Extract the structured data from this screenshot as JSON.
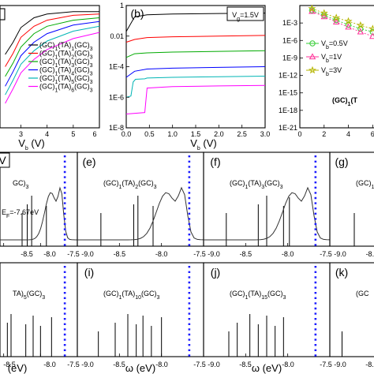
{
  "chart_data": [
    {
      "id": "a",
      "type": "line",
      "xlabel": "V",
      "xlabel_sub": "b",
      "xlabel_unit": "(V)",
      "xlim": [
        2.2,
        6
      ],
      "xticks": [
        3,
        4,
        5,
        6
      ],
      "legend_placement": "bottom-right",
      "series": [
        {
          "name": "(GC)1(TA)1(GC)3",
          "color": "#000000",
          "x": [
            2.4,
            2.7,
            3.0,
            3.5,
            4.0,
            5.0,
            6.0
          ],
          "y": [
            0.6,
            0.7,
            0.82,
            0.9,
            0.93,
            0.95,
            0.95
          ]
        },
        {
          "name": "(GC)1(TA)2(GC)3",
          "color": "#ff0000",
          "x": [
            2.4,
            2.7,
            3.0,
            3.5,
            4.0,
            5.0,
            6.0
          ],
          "y": [
            0.5,
            0.61,
            0.74,
            0.83,
            0.88,
            0.92,
            0.93
          ]
        },
        {
          "name": "(GC)1(TA)3(GC)3",
          "color": "#00aa00",
          "x": [
            2.4,
            2.7,
            3.0,
            3.5,
            4.0,
            5.0,
            6.0
          ],
          "y": [
            0.42,
            0.53,
            0.66,
            0.77,
            0.83,
            0.88,
            0.9
          ]
        },
        {
          "name": "(GC)1(TA)4(GC)3",
          "color": "#0000ff",
          "x": [
            2.4,
            2.7,
            3.0,
            3.5,
            4.0,
            5.0,
            6.0
          ],
          "y": [
            0.34,
            0.46,
            0.59,
            0.7,
            0.77,
            0.84,
            0.87
          ]
        },
        {
          "name": "(GC)1(TA)5(GC)3",
          "color": "#00b5b5",
          "x": [
            2.4,
            2.7,
            3.0,
            3.5,
            4.0,
            5.0,
            6.0
          ],
          "y": [
            0.27,
            0.39,
            0.52,
            0.63,
            0.71,
            0.79,
            0.83
          ]
        },
        {
          "name": "(GC)1(TA)6(GC)3",
          "color": "#ff00ff",
          "x": [
            2.4,
            2.7,
            3.0,
            3.5,
            4.0,
            5.0,
            6.0
          ],
          "y": [
            0.2,
            0.32,
            0.45,
            0.56,
            0.64,
            0.73,
            0.78
          ]
        }
      ]
    },
    {
      "id": "b",
      "type": "line",
      "label": "(b)",
      "annotation": "V",
      "annotation_sub": "g",
      "annotation_value": "=1.5V",
      "xlabel": "V",
      "xlabel_sub": "b",
      "xlabel_unit": "(V)",
      "xlim": [
        0,
        3
      ],
      "xticks": [
        "0.0",
        "0.5",
        "1.0",
        "1.5",
        "2.0",
        "2.5",
        "3.0"
      ],
      "y_scale": "log",
      "ylim": [
        1e-08,
        1
      ],
      "yticks": [
        "1E-8",
        "1E-6",
        "1E-4",
        "0.01",
        "1"
      ],
      "series": [
        {
          "color": "#000000",
          "x": [
            0.0,
            0.18,
            0.45,
            1.0,
            2.0,
            3.0
          ],
          "y": [
            0.02,
            0.18,
            0.25,
            0.28,
            0.3,
            0.32
          ]
        },
        {
          "color": "#ff0000",
          "x": [
            0.0,
            0.18,
            0.45,
            1.0,
            2.0,
            3.0
          ],
          "y": [
            0.004,
            0.006,
            0.008,
            0.009,
            0.01,
            0.011
          ]
        },
        {
          "color": "#00aa00",
          "x": [
            0.0,
            0.18,
            0.45,
            1.0,
            2.0,
            3.0
          ],
          "y": [
            0.0004,
            0.0007,
            0.0008,
            0.0009,
            0.001,
            0.0011
          ]
        },
        {
          "color": "#0000ff",
          "x": [
            0.0,
            0.18,
            0.45,
            1.0,
            2.0,
            3.0
          ],
          "y": [
            2e-05,
            5e-05,
            7e-05,
            8e-05,
            9e-05,
            0.0001
          ]
        },
        {
          "color": "#00b5b5",
          "x": [
            0.0,
            0.1,
            0.15,
            0.2,
            0.4,
            0.45,
            1.0,
            2.0,
            3.0
          ],
          "y": [
            1e-06,
            1.2e-06,
            1e-05,
            1.5e-05,
            1.6e-05,
            1.8e-05,
            2e-05,
            2.2e-05,
            2.4e-05
          ]
        },
        {
          "color": "#ff00ff",
          "x": [
            0.0,
            0.4,
            0.45,
            1.0,
            2.0,
            3.0
          ],
          "y": [
            8e-08,
            1e-07,
            4e-06,
            5e-06,
            5.5e-06,
            6e-06
          ]
        }
      ]
    },
    {
      "id": "c",
      "type": "scatter",
      "title": "(GC)1(T",
      "xlim": [
        0,
        6.5
      ],
      "xticks": [
        "0",
        "2",
        "4",
        "6"
      ],
      "y_scale": "log",
      "ylim": [
        1e-21,
        1
      ],
      "yticks": [
        "1E-3",
        "1E-6",
        "1E-9",
        "1E-12",
        "1E-15",
        "1E-18",
        "1E-21"
      ],
      "legend_placement": "center-right",
      "series": [
        {
          "name": "V_b=0.5V",
          "label": "V",
          "sub": "b",
          "value": "=0.5V",
          "marker": "circle",
          "color": "#33cc33",
          "x": [
            1,
            2,
            3,
            4,
            5,
            6
          ],
          "y": [
            0.15,
            0.02,
            0.003,
            0.0005,
            0.0001,
            3e-05
          ]
        },
        {
          "name": "V_b=1V",
          "label": "V",
          "sub": "b",
          "value": "=1V",
          "marker": "triangle",
          "color": "#ff3399",
          "x": [
            1,
            2,
            3,
            4,
            5,
            6
          ],
          "y": [
            0.1,
            0.012,
            0.0015,
            0.0002,
            3e-05,
            5e-06
          ]
        },
        {
          "name": "V_b=3V",
          "label": "V",
          "sub": "b",
          "value": "=3V",
          "marker": "star",
          "color": "#b5b500",
          "x": [
            1,
            2,
            3,
            4,
            5,
            6
          ],
          "y": [
            0.3,
            0.05,
            0.008,
            0.002,
            0.0004,
            0.0001
          ]
        }
      ]
    }
  ],
  "spectra": {
    "top_row": [
      {
        "id": "d",
        "label": "",
        "formula": "GC)3",
        "partial_box": true,
        "fermi_text": "E",
        "fermi_sub": "F",
        "fermi_value": "=-7.67eV",
        "peaks": [
          -8.25,
          -8.18,
          -8.12,
          -7.92
        ]
      },
      {
        "id": "e",
        "label": "(e)",
        "formula": "(GC)1(TA)2(GC)3",
        "peaks": [
          -8.72,
          -8.33,
          -8.28,
          -8.1
        ]
      },
      {
        "id": "f",
        "label": "(f)",
        "formula": "(GC)1(TA)3(GC)3",
        "peaks": [
          -8.73,
          -8.35,
          -8.25,
          -8.05,
          -7.98
        ]
      },
      {
        "id": "g",
        "label": "(g)",
        "formula": "(GC)1(TA",
        "peaks": [
          -8.8
        ]
      }
    ],
    "bottom_row": [
      {
        "id": "h",
        "label": "",
        "formula": "TA)5(GC)3",
        "peaks": [
          -8.55,
          -8.45,
          -8.4,
          -8.2,
          -8.1,
          -8.0,
          -7.85
        ]
      },
      {
        "id": "i",
        "label": "(i)",
        "formula": "(GC)1(TA)10(GC)3",
        "peaks": [
          -8.75,
          -8.55,
          -8.4,
          -8.3,
          -8.22,
          -8.12,
          -8.0
        ]
      },
      {
        "id": "j",
        "label": "(j)",
        "formula": "(GC)1(TA)15(GC)3",
        "peaks": [
          -8.7,
          -8.6,
          -8.45,
          -8.35,
          -8.25,
          -8.15,
          -8.05
        ]
      },
      {
        "id": "k",
        "label": "(k)",
        "formula": "(GC",
        "peaks": [
          -8.9
        ]
      }
    ],
    "fermi_level_ev": -7.67,
    "xticks_full": [
      "-9.0",
      "-8.5",
      "-8.0",
      "-7.5"
    ],
    "xlabel": "ω (eV)",
    "edge_tick_left": "-8.0",
    "edge_tick_right": "-7.5",
    "partial_xlabel_left": "(eV)",
    "left_box_text": "V",
    "top_tick_text": "-8.5"
  }
}
